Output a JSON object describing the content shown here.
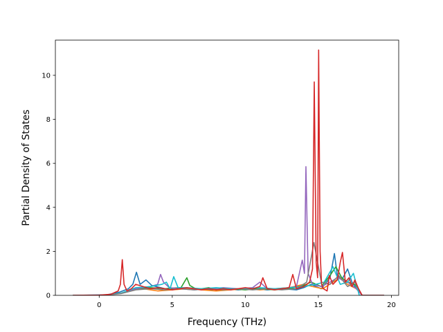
{
  "chart_data": {
    "type": "line",
    "xlabel": "Frequency (THz)",
    "ylabel": "Partial Density of States",
    "xlim": [
      -3.0,
      20.5
    ],
    "ylim": [
      0,
      11.6
    ],
    "grid": false,
    "legend": "none",
    "xticks": [
      0,
      5,
      10,
      15,
      20
    ],
    "yticks": [
      0,
      2,
      4,
      6,
      8,
      10
    ],
    "xtick_labels": [
      "0",
      "5",
      "10",
      "15",
      "20"
    ],
    "ytick_labels": [
      "0",
      "2",
      "4",
      "6",
      "8",
      "10"
    ],
    "series": [
      {
        "color": "#1f77b4",
        "x": [
          -1.8,
          0.5,
          1.4,
          2.0,
          2.3,
          2.55,
          2.8,
          3.2,
          3.6,
          4.5,
          5.5,
          6.5,
          7.5,
          8.5,
          9.5,
          10.5,
          11.5,
          12.5,
          13.5,
          14.0,
          14.5,
          15.2,
          15.8,
          16.1,
          16.3,
          16.6,
          17.0,
          17.3,
          17.6,
          18.0,
          19.5
        ],
        "y": [
          0,
          0.02,
          0.15,
          0.3,
          0.5,
          1.05,
          0.5,
          0.7,
          0.45,
          0.3,
          0.35,
          0.3,
          0.25,
          0.3,
          0.25,
          0.3,
          0.25,
          0.3,
          0.25,
          0.35,
          0.5,
          0.3,
          0.8,
          1.9,
          0.9,
          0.7,
          1.2,
          0.6,
          0.3,
          0,
          0
        ]
      },
      {
        "color": "#ff7f0e",
        "x": [
          -1.8,
          0.5,
          1.5,
          2.2,
          3.0,
          4.0,
          5.0,
          6.0,
          7.0,
          8.0,
          9.0,
          10.0,
          11.0,
          12.0,
          13.0,
          14.0,
          14.6,
          15.3,
          16.0,
          16.5,
          17.0,
          17.6,
          18.0,
          19.5
        ],
        "y": [
          0,
          0.01,
          0.1,
          0.25,
          0.3,
          0.2,
          0.25,
          0.3,
          0.25,
          0.2,
          0.25,
          0.3,
          0.25,
          0.3,
          0.35,
          0.5,
          0.4,
          0.3,
          0.6,
          0.8,
          0.5,
          0.3,
          0,
          0
        ]
      },
      {
        "color": "#2ca02c",
        "x": [
          -1.8,
          0.5,
          1.5,
          2.5,
          3.5,
          4.5,
          5.6,
          6.0,
          6.2,
          6.6,
          7.0,
          7.5,
          8.0,
          9.0,
          10.0,
          11.0,
          12.0,
          13.0,
          14.0,
          14.5,
          15.2,
          15.8,
          16.2,
          16.6,
          17.0,
          17.5,
          18.0,
          19.5
        ],
        "y": [
          0,
          0.01,
          0.1,
          0.3,
          0.35,
          0.3,
          0.35,
          0.8,
          0.45,
          0.3,
          0.3,
          0.35,
          0.25,
          0.3,
          0.25,
          0.3,
          0.25,
          0.3,
          0.45,
          0.6,
          0.4,
          0.9,
          1.3,
          0.8,
          0.6,
          0.5,
          0,
          0
        ]
      },
      {
        "color": "#9467bd",
        "x": [
          -1.8,
          0.5,
          1.5,
          2.5,
          3.5,
          4.0,
          4.2,
          4.4,
          4.8,
          5.5,
          6.5,
          7.5,
          8.5,
          9.5,
          10.5,
          11.0,
          11.5,
          12.5,
          13.5,
          13.9,
          14.05,
          14.15,
          14.3,
          14.6,
          15.2,
          15.8,
          16.3,
          17.0,
          17.6,
          18.0,
          19.5
        ],
        "y": [
          0,
          0.01,
          0.1,
          0.3,
          0.4,
          0.5,
          0.95,
          0.6,
          0.35,
          0.3,
          0.25,
          0.3,
          0.35,
          0.3,
          0.35,
          0.6,
          0.3,
          0.3,
          0.4,
          1.6,
          1.0,
          5.85,
          1.0,
          0.5,
          0.4,
          0.6,
          0.8,
          0.6,
          0.3,
          0,
          0
        ]
      },
      {
        "color": "#17becf",
        "x": [
          -1.8,
          0.5,
          1.5,
          2.5,
          3.5,
          4.3,
          4.6,
          4.85,
          5.1,
          5.4,
          6.0,
          7.0,
          8.0,
          9.0,
          10.0,
          11.0,
          12.0,
          13.0,
          14.0,
          14.8,
          15.4,
          16.0,
          16.5,
          17.0,
          17.4,
          17.8,
          19.5
        ],
        "y": [
          0,
          0.01,
          0.1,
          0.35,
          0.4,
          0.5,
          0.6,
          0.3,
          0.85,
          0.35,
          0.35,
          0.3,
          0.35,
          0.3,
          0.3,
          0.35,
          0.3,
          0.35,
          0.4,
          0.5,
          0.6,
          1.3,
          0.5,
          0.6,
          1.0,
          0,
          0
        ]
      },
      {
        "color": "#7f7f7f",
        "x": [
          -1.8,
          0.5,
          1.5,
          2.5,
          3.5,
          4.5,
          5.5,
          6.5,
          7.5,
          8.5,
          9.5,
          10.5,
          11.5,
          12.5,
          13.5,
          14.2,
          14.7,
          15.2,
          15.8,
          16.4,
          17.0,
          17.5,
          18.0,
          19.5
        ],
        "y": [
          0,
          0.01,
          0.08,
          0.25,
          0.3,
          0.25,
          0.3,
          0.25,
          0.3,
          0.25,
          0.3,
          0.25,
          0.3,
          0.25,
          0.3,
          0.6,
          2.4,
          0.6,
          0.5,
          0.9,
          0.4,
          0.6,
          0,
          0
        ]
      },
      {
        "color": "#d62728",
        "x": [
          -1.8,
          0.0,
          0.8,
          1.3,
          1.45,
          1.58,
          1.7,
          1.9,
          2.2,
          2.5,
          3.0,
          3.5,
          4.0,
          4.5,
          5.0,
          5.5,
          6.0,
          6.5,
          7.0,
          7.5,
          8.0,
          8.5,
          9.0,
          9.5,
          10.0,
          10.5,
          11.0,
          11.2,
          11.5,
          12.0,
          12.5,
          13.0,
          13.25,
          13.5,
          14.0,
          14.4,
          14.6,
          14.72,
          14.85,
          14.95,
          15.02,
          15.12,
          15.22,
          15.35,
          15.6,
          15.75,
          16.0,
          16.3,
          16.5,
          16.65,
          16.85,
          17.1,
          17.3,
          17.5,
          17.75,
          18.0,
          19.5
        ],
        "y": [
          0,
          0.01,
          0.05,
          0.2,
          0.5,
          1.62,
          0.5,
          0.2,
          0.3,
          0.5,
          0.4,
          0.3,
          0.35,
          0.3,
          0.25,
          0.3,
          0.35,
          0.3,
          0.25,
          0.3,
          0.25,
          0.3,
          0.25,
          0.3,
          0.35,
          0.3,
          0.4,
          0.8,
          0.3,
          0.25,
          0.3,
          0.35,
          0.95,
          0.3,
          0.4,
          0.6,
          1.2,
          9.7,
          1.5,
          0.8,
          11.15,
          2.0,
          0.5,
          0.3,
          0.2,
          0.9,
          0.5,
          0.7,
          1.5,
          1.95,
          0.6,
          0.8,
          0.4,
          0.7,
          0.3,
          0,
          0
        ]
      }
    ]
  }
}
